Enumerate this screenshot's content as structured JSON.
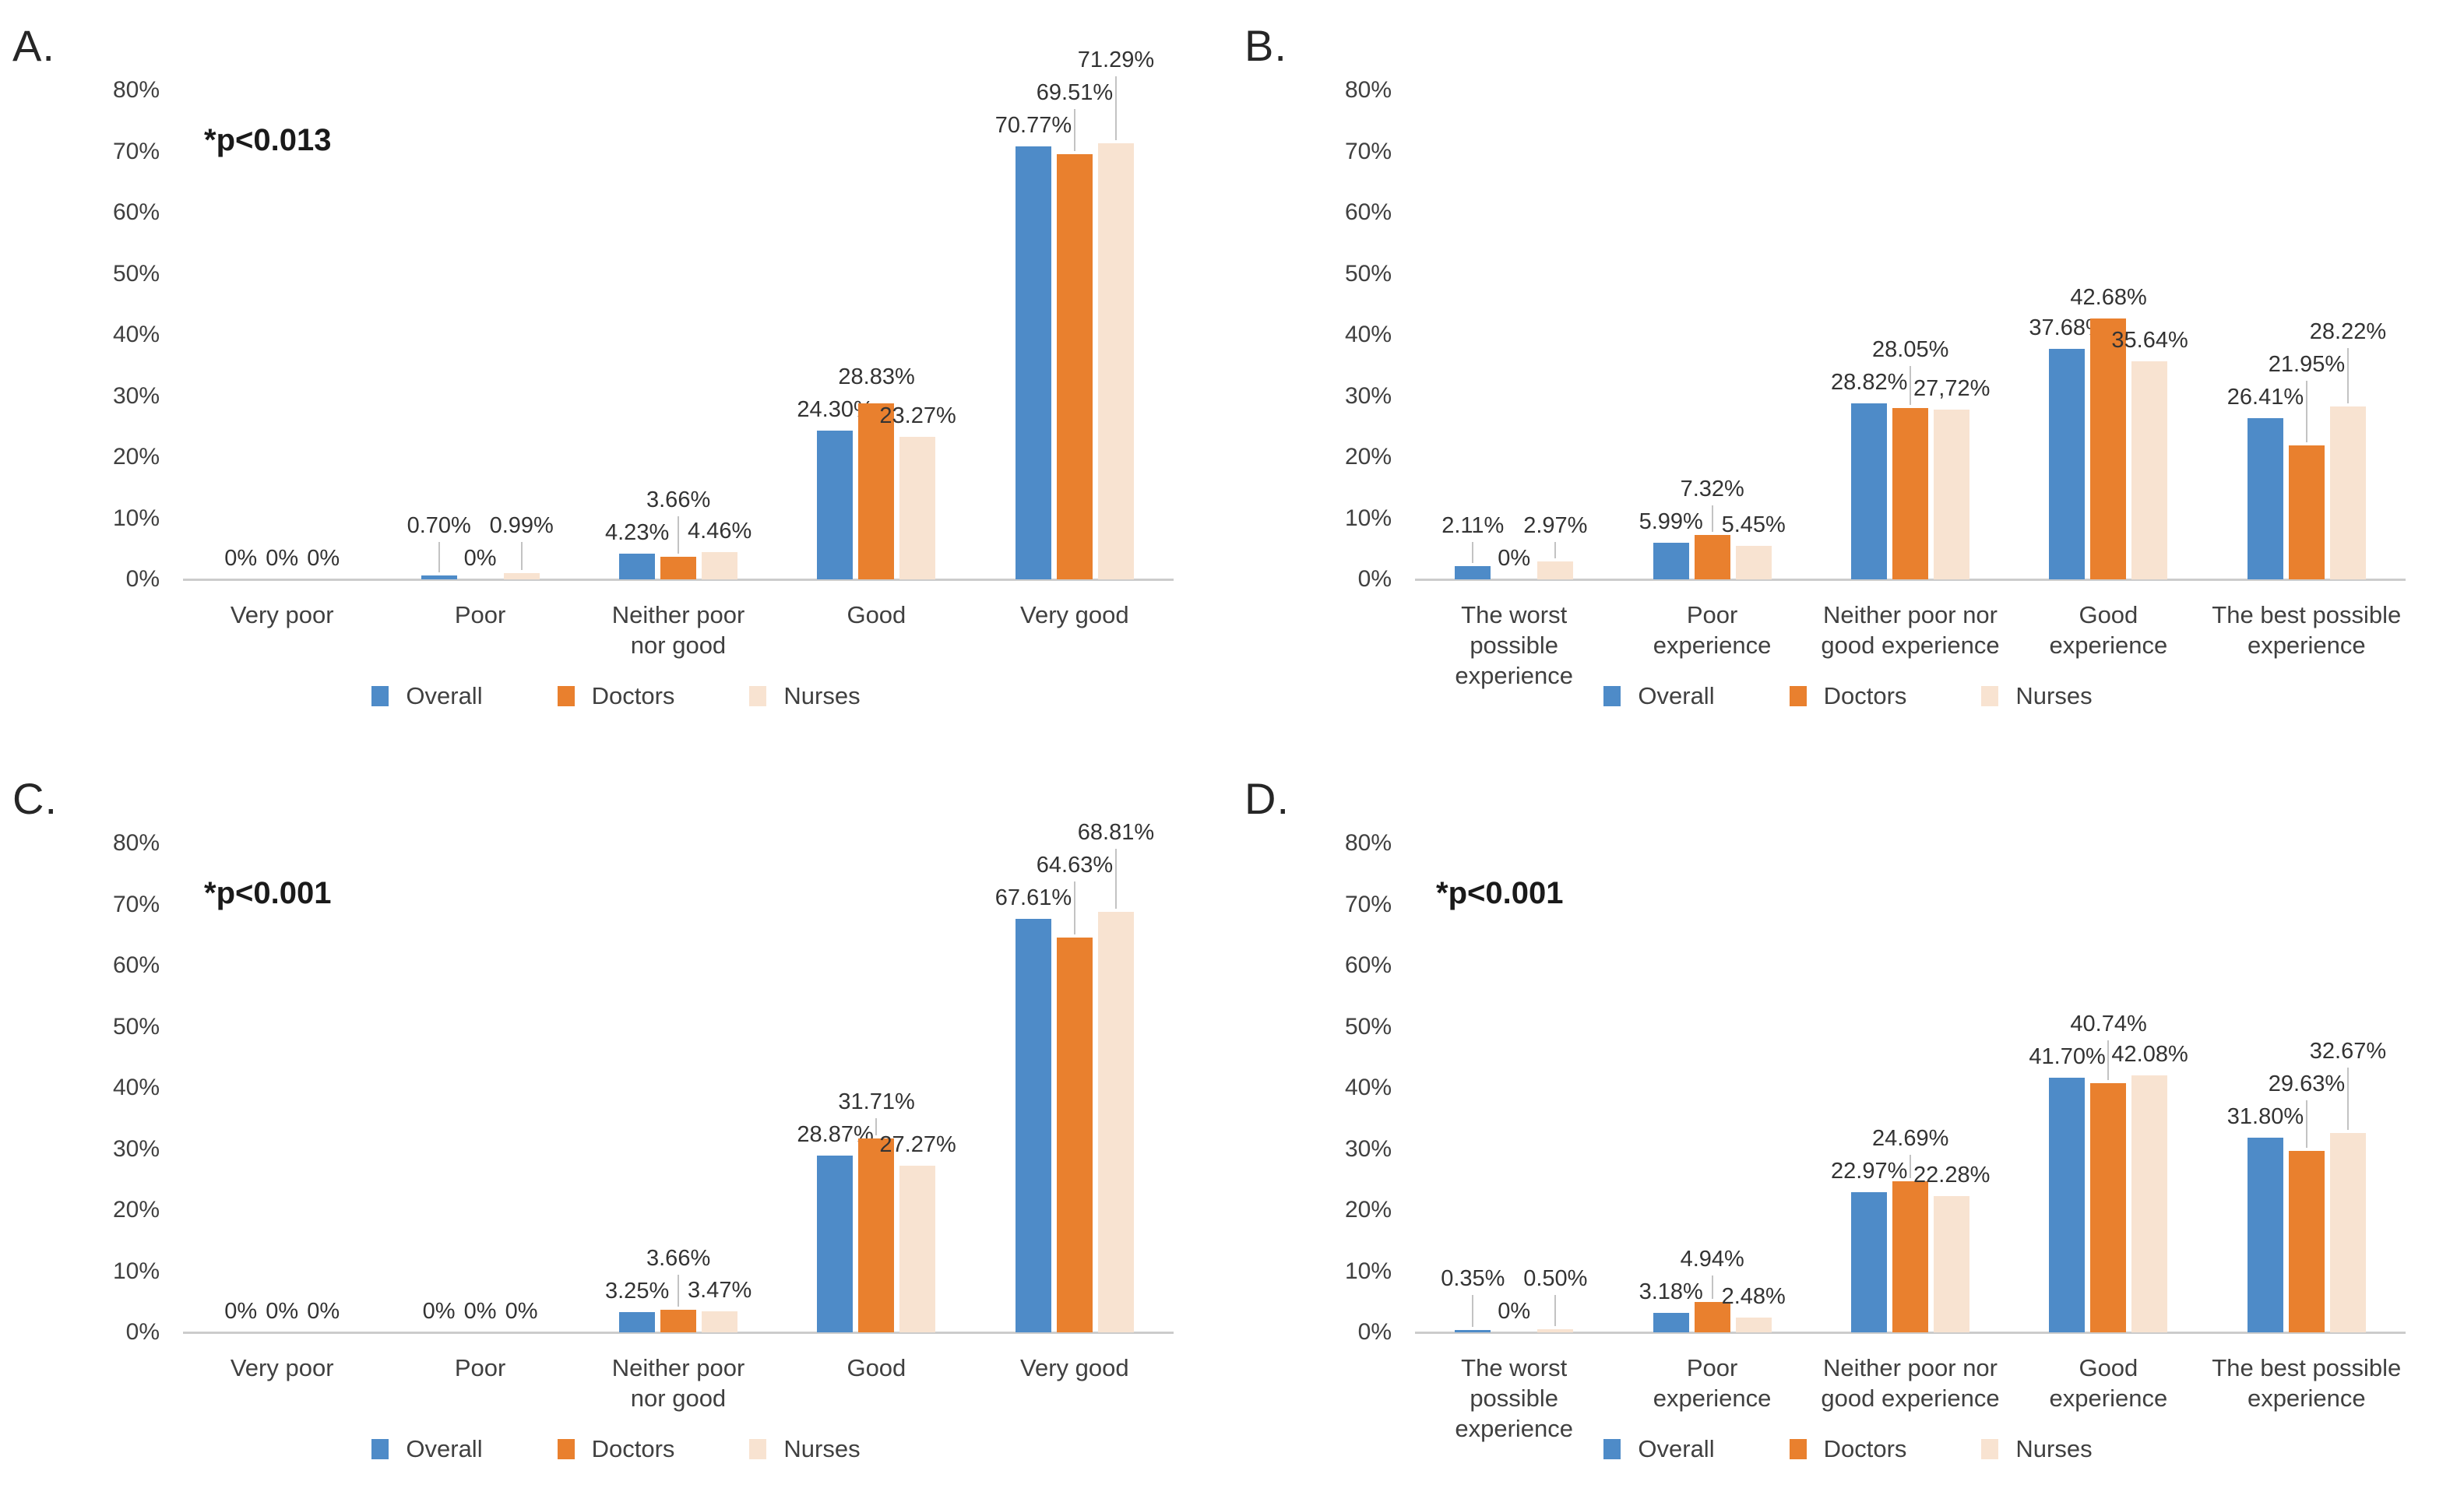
{
  "figure": {
    "type": "four-panel-grouped-bar-figure",
    "background": "#ffffff",
    "series_colors": {
      "Overall": "#4E8BC8",
      "Doctors": "#E9802E",
      "Nurses": "#F8E3D1"
    },
    "axis_color": "#cccccc",
    "leader_line_color": "#c3c3c3"
  },
  "chart_data": [
    {
      "type": "bar",
      "panel_letter": "A.",
      "annotation": "*p<0.013",
      "y_ticks": [
        "0%",
        "10%",
        "20%",
        "30%",
        "40%",
        "50%",
        "60%",
        "70%",
        "80%"
      ],
      "ylim": [
        0,
        80
      ],
      "grid": false,
      "legend_position": "bottom",
      "categories": [
        "Very poor",
        "Poor",
        "Neither poor nor good",
        "Good",
        "Very good"
      ],
      "category_label_lines": [
        [
          "Very poor"
        ],
        [
          "Poor"
        ],
        [
          "Neither poor",
          "nor good"
        ],
        [
          "Good"
        ],
        [
          "Very good"
        ]
      ],
      "series": [
        {
          "name": "Overall",
          "values": [
            0,
            0.7,
            4.23,
            24.3,
            70.77
          ],
          "labels": [
            "0%",
            "0.70%",
            "4.23%",
            "24.30%",
            "70.77%"
          ]
        },
        {
          "name": "Doctors",
          "values": [
            0,
            0,
            3.66,
            28.83,
            69.51
          ],
          "labels": [
            "0%",
            "0%",
            "3.66%",
            "28.83%",
            "69.51%"
          ]
        },
        {
          "name": "Nurses",
          "values": [
            0,
            0.99,
            4.46,
            23.27,
            71.29
          ],
          "labels": [
            "0%",
            "0.99%",
            "4.46%",
            "23.27%",
            "71.29%"
          ]
        }
      ],
      "legend": [
        "Overall",
        "Doctors",
        "Nurses"
      ]
    },
    {
      "type": "bar",
      "panel_letter": "B.",
      "annotation": null,
      "y_ticks": [
        "0%",
        "10%",
        "20%",
        "30%",
        "40%",
        "50%",
        "60%",
        "70%",
        "80%"
      ],
      "ylim": [
        0,
        80
      ],
      "grid": false,
      "legend_position": "bottom",
      "categories": [
        "The worst possible experience",
        "Poor experience",
        "Neither poor nor good experience",
        "Good experience",
        "The best possible experience"
      ],
      "category_label_lines": [
        [
          "The worst",
          "possible",
          "experience"
        ],
        [
          "Poor",
          "experience"
        ],
        [
          "Neither poor nor",
          "good experience"
        ],
        [
          "Good",
          "experience"
        ],
        [
          "The best possible",
          "experience"
        ]
      ],
      "series": [
        {
          "name": "Overall",
          "values": [
            2.11,
            5.99,
            28.82,
            37.68,
            26.41
          ],
          "labels": [
            "2.11%",
            "5.99%",
            "28.82%",
            "37.68%",
            "26.41%"
          ]
        },
        {
          "name": "Doctors",
          "values": [
            0,
            7.32,
            28.05,
            42.68,
            21.95
          ],
          "labels": [
            "0%",
            "7.32%",
            "28.05%",
            "42.68%",
            "21.95%"
          ]
        },
        {
          "name": "Nurses",
          "values": [
            2.97,
            5.45,
            27.72,
            35.64,
            28.22
          ],
          "labels": [
            "2.97%",
            "5.45%",
            "27,72%",
            "35.64%",
            "28.22%"
          ]
        }
      ],
      "legend": [
        "Overall",
        "Doctors",
        "Nurses"
      ]
    },
    {
      "type": "bar",
      "panel_letter": "C.",
      "annotation": "*p<0.001",
      "y_ticks": [
        "0%",
        "10%",
        "20%",
        "30%",
        "40%",
        "50%",
        "60%",
        "70%",
        "80%"
      ],
      "ylim": [
        0,
        80
      ],
      "grid": false,
      "legend_position": "bottom",
      "categories": [
        "Very poor",
        "Poor",
        "Neither poor nor good",
        "Good",
        "Very good"
      ],
      "category_label_lines": [
        [
          "Very poor"
        ],
        [
          "Poor"
        ],
        [
          "Neither poor",
          "nor good"
        ],
        [
          "Good"
        ],
        [
          "Very good"
        ]
      ],
      "series": [
        {
          "name": "Overall",
          "values": [
            0,
            0,
            3.25,
            28.87,
            67.61
          ],
          "labels": [
            "0%",
            "0%",
            "3.25%",
            "28.87%",
            "67.61%"
          ]
        },
        {
          "name": "Doctors",
          "values": [
            0,
            0,
            3.66,
            31.71,
            64.63
          ],
          "labels": [
            "0%",
            "0%",
            "3.66%",
            "31.71%",
            "64.63%"
          ]
        },
        {
          "name": "Nurses",
          "values": [
            0,
            0,
            3.47,
            27.27,
            68.81
          ],
          "labels": [
            "0%",
            "0%",
            "3.47%",
            "27.27%",
            "68.81%"
          ]
        }
      ],
      "legend": [
        "Overall",
        "Doctors",
        "Nurses"
      ]
    },
    {
      "type": "bar",
      "panel_letter": "D.",
      "annotation": "*p<0.001",
      "y_ticks": [
        "0%",
        "10%",
        "20%",
        "30%",
        "40%",
        "50%",
        "60%",
        "70%",
        "80%"
      ],
      "ylim": [
        0,
        80
      ],
      "grid": false,
      "legend_position": "bottom",
      "categories": [
        "The worst possible experience",
        "Poor experience",
        "Neither poor nor good experience",
        "Good experience",
        "The best possible experience"
      ],
      "category_label_lines": [
        [
          "The worst",
          "possible",
          "experience"
        ],
        [
          "Poor",
          "experience"
        ],
        [
          "Neither poor nor",
          "good experience"
        ],
        [
          "Good",
          "experience"
        ],
        [
          "The best possible",
          "experience"
        ]
      ],
      "series": [
        {
          "name": "Overall",
          "values": [
            0.35,
            3.18,
            22.97,
            41.7,
            31.8
          ],
          "labels": [
            "0.35%",
            "3.18%",
            "22.97%",
            "41.70%",
            "31.80%"
          ]
        },
        {
          "name": "Doctors",
          "values": [
            0,
            4.94,
            24.69,
            40.74,
            29.63
          ],
          "labels": [
            "0%",
            "4.94%",
            "24.69%",
            "40.74%",
            "29.63%"
          ]
        },
        {
          "name": "Nurses",
          "values": [
            0.5,
            2.48,
            22.28,
            42.08,
            32.67
          ],
          "labels": [
            "0.50%",
            "2.48%",
            "22.28%",
            "42.08%",
            "32.67%"
          ]
        }
      ],
      "legend": [
        "Overall",
        "Doctors",
        "Nurses"
      ]
    }
  ]
}
